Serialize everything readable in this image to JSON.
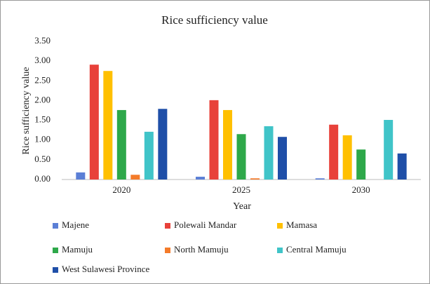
{
  "chart_data": {
    "type": "bar",
    "title": "Rice sufficiency value",
    "x_label": "Year",
    "y_label": "Rice sufficiency value",
    "categories": [
      "2020",
      "2025",
      "2030"
    ],
    "series": [
      {
        "name": "Majene",
        "color": "#5b7fd6",
        "values": [
          0.18,
          0.07,
          0.03
        ]
      },
      {
        "name": "Polewali Mandar",
        "color": "#e8413a",
        "values": [
          2.91,
          2.01,
          1.39
        ]
      },
      {
        "name": "Mamasa",
        "color": "#ffc000",
        "values": [
          2.75,
          1.76,
          1.12
        ]
      },
      {
        "name": "Mamuju",
        "color": "#2ea84a",
        "values": [
          1.76,
          1.15,
          0.76
        ]
      },
      {
        "name": "North Mamuju",
        "color": "#f47b2a",
        "values": [
          0.12,
          0.03,
          0
        ]
      },
      {
        "name": "Central Mamuju",
        "color": "#40c4c8",
        "values": [
          1.21,
          1.35,
          1.51
        ]
      },
      {
        "name": "West Sulawesi Province",
        "color": "#1f4fa8",
        "values": [
          1.79,
          1.08,
          0.66
        ]
      }
    ],
    "ylim": [
      0,
      3.5
    ],
    "yticks": [
      {
        "value": 0,
        "label": "0.00"
      },
      {
        "value": 0.5,
        "label": "0.50"
      },
      {
        "value": 1,
        "label": "1.00"
      },
      {
        "value": 1.5,
        "label": "1.50"
      },
      {
        "value": 2,
        "label": "2.00"
      },
      {
        "value": 2.5,
        "label": "2.50"
      },
      {
        "value": 3,
        "label": "3.00"
      },
      {
        "value": 3.5,
        "label": "3.50"
      }
    ],
    "grid": false,
    "legend": "bottom"
  }
}
